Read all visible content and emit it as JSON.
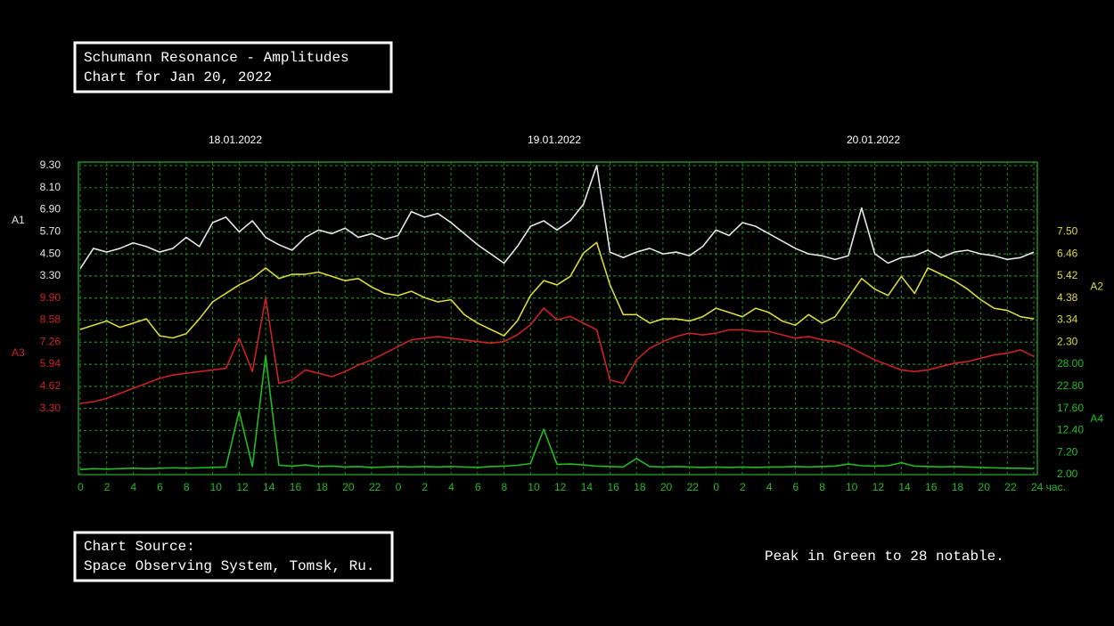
{
  "title_lines": [
    "Schumann Resonance - Amplitudes",
    "Chart for Jan 20, 2022"
  ],
  "source_lines": [
    "Chart Source:",
    "Space Observing System, Tomsk, Ru."
  ],
  "note": "Peak in Green to 28 notable.",
  "chart_data": {
    "type": "line",
    "date_labels": [
      "18.01.2022",
      "19.01.2022",
      "20.01.2022"
    ],
    "x": [
      0,
      1,
      2,
      3,
      4,
      5,
      6,
      7,
      8,
      9,
      10,
      11,
      12,
      13,
      14,
      15,
      16,
      17,
      18,
      19,
      20,
      21,
      22,
      23,
      24,
      25,
      26,
      27,
      28,
      29,
      30,
      31,
      32,
      33,
      34,
      35,
      36,
      37,
      38,
      39,
      40,
      41,
      42,
      43,
      44,
      45,
      46,
      47,
      48,
      49,
      50,
      51,
      52,
      53,
      54,
      55,
      56,
      57,
      58,
      59,
      60,
      61,
      62,
      63,
      64,
      65,
      66,
      67,
      68,
      69,
      70,
      71,
      72
    ],
    "xlim": [
      0,
      72
    ],
    "xticks": [
      0,
      2,
      4,
      6,
      8,
      10,
      12,
      14,
      16,
      18,
      20,
      22,
      {
        "value": 24,
        "label": "0"
      },
      {
        "value": 26,
        "label": "2"
      },
      {
        "value": 28,
        "label": "4"
      },
      {
        "value": 30,
        "label": "6"
      },
      {
        "value": 32,
        "label": "8"
      },
      {
        "value": 34,
        "label": "10"
      },
      {
        "value": 36,
        "label": "12"
      },
      {
        "value": 38,
        "label": "14"
      },
      {
        "value": 40,
        "label": "16"
      },
      {
        "value": 42,
        "label": "18"
      },
      {
        "value": 44,
        "label": "20"
      },
      {
        "value": 46,
        "label": "22"
      },
      {
        "value": 48,
        "label": "0"
      },
      {
        "value": 50,
        "label": "2"
      },
      {
        "value": 52,
        "label": "4"
      },
      {
        "value": 54,
        "label": "6"
      },
      {
        "value": 56,
        "label": "8"
      },
      {
        "value": 58,
        "label": "10"
      },
      {
        "value": 60,
        "label": "12"
      },
      {
        "value": 62,
        "label": "14"
      },
      {
        "value": 64,
        "label": "16"
      },
      {
        "value": 66,
        "label": "18"
      },
      {
        "value": 68,
        "label": "20"
      },
      {
        "value": 70,
        "label": "22"
      },
      {
        "value": 72,
        "label": "24 час."
      }
    ],
    "grid": true,
    "series": [
      {
        "name": "A1",
        "color": "#e6e6e6",
        "side": "left",
        "ylim": [
          -7.5,
          9.3
        ],
        "yticks": [
          {
            "value": 9.3,
            "label": "9.30"
          },
          {
            "value": 8.1,
            "label": "8.10"
          },
          {
            "value": 6.9,
            "label": "6.90"
          },
          {
            "value": 5.7,
            "label": "5.70"
          },
          {
            "value": 4.5,
            "label": "4.50"
          },
          {
            "value": 3.3,
            "label": "3.30"
          }
        ],
        "values": [
          3.7,
          4.8,
          4.6,
          4.8,
          5.1,
          4.9,
          4.6,
          4.8,
          5.4,
          4.9,
          6.2,
          6.5,
          5.7,
          6.3,
          5.4,
          5.0,
          4.7,
          5.4,
          5.8,
          5.6,
          5.9,
          5.4,
          5.6,
          5.3,
          5.5,
          6.8,
          6.5,
          6.7,
          6.2,
          5.6,
          5.0,
          4.5,
          4.0,
          4.9,
          6.0,
          6.3,
          5.8,
          6.3,
          7.2,
          9.3,
          4.6,
          4.3,
          4.6,
          4.8,
          4.5,
          4.6,
          4.4,
          4.9,
          5.8,
          5.5,
          6.2,
          6.0,
          5.6,
          5.2,
          4.8,
          4.5,
          4.4,
          4.2,
          4.4,
          7.0,
          4.5,
          4.0,
          4.3,
          4.4,
          4.7,
          4.3,
          4.6,
          4.7,
          4.5,
          4.4,
          4.2,
          4.3,
          4.6
        ]
      },
      {
        "name": "A3",
        "color": "#cc2222",
        "side": "left",
        "ylim": [
          -0.66,
          17.82
        ],
        "yticks": [
          {
            "value": 9.9,
            "label": "9.90"
          },
          {
            "value": 8.58,
            "label": "8.58"
          },
          {
            "value": 7.26,
            "label": "7.26"
          },
          {
            "value": 5.94,
            "label": "5.94"
          },
          {
            "value": 4.62,
            "label": "4.62"
          },
          {
            "value": 3.3,
            "label": "3.30"
          }
        ],
        "values": [
          3.6,
          3.7,
          3.9,
          4.2,
          4.5,
          4.8,
          5.1,
          5.3,
          5.4,
          5.5,
          5.6,
          5.7,
          7.5,
          5.5,
          9.9,
          4.8,
          5.0,
          5.6,
          5.4,
          5.2,
          5.5,
          5.9,
          6.2,
          6.6,
          7.0,
          7.4,
          7.5,
          7.6,
          7.5,
          7.4,
          7.3,
          7.2,
          7.3,
          7.7,
          8.3,
          9.3,
          8.6,
          8.8,
          8.4,
          8.0,
          5.0,
          4.8,
          6.2,
          6.9,
          7.3,
          7.6,
          7.8,
          7.7,
          7.8,
          8.0,
          8.0,
          7.9,
          7.9,
          7.7,
          7.5,
          7.6,
          7.4,
          7.3,
          7.0,
          6.6,
          6.2,
          5.9,
          5.6,
          5.5,
          5.6,
          5.8,
          6.0,
          6.1,
          6.3,
          6.5,
          6.6,
          6.8,
          6.4
        ]
      },
      {
        "name": "A2",
        "color": "#d9d93a",
        "side": "right",
        "ylim": [
          -3.94,
          10.62
        ],
        "yticks": [
          {
            "value": 7.5,
            "label": "7.50"
          },
          {
            "value": 6.46,
            "label": "6.46"
          },
          {
            "value": 5.42,
            "label": "5.42"
          },
          {
            "value": 4.38,
            "label": "4.38"
          },
          {
            "value": 3.34,
            "label": "3.34"
          },
          {
            "value": 2.3,
            "label": "2.30"
          }
        ],
        "values": [
          2.9,
          3.1,
          3.3,
          3.0,
          3.2,
          3.4,
          2.6,
          2.5,
          2.7,
          3.4,
          4.2,
          4.6,
          5.0,
          5.3,
          5.8,
          5.3,
          5.5,
          5.5,
          5.6,
          5.4,
          5.2,
          5.3,
          4.9,
          4.6,
          4.5,
          4.7,
          4.4,
          4.2,
          4.3,
          3.6,
          3.2,
          2.9,
          2.6,
          3.3,
          4.5,
          5.2,
          5.0,
          5.4,
          6.5,
          7.0,
          5.0,
          3.6,
          3.6,
          3.2,
          3.4,
          3.4,
          3.3,
          3.5,
          3.9,
          3.7,
          3.5,
          3.9,
          3.7,
          3.3,
          3.1,
          3.6,
          3.2,
          3.5,
          4.4,
          5.3,
          4.8,
          4.5,
          5.4,
          4.6,
          5.8,
          5.5,
          5.2,
          4.8,
          4.3,
          3.9,
          3.8,
          3.5,
          3.4
        ]
      },
      {
        "name": "A4",
        "color": "#22bb22",
        "side": "right",
        "ylim": [
          2,
          74.8
        ],
        "yticks": [
          {
            "value": 28,
            "label": "28.00"
          },
          {
            "value": 22.8,
            "label": "22.80"
          },
          {
            "value": 17.6,
            "label": "17.60"
          },
          {
            "value": 12.4,
            "label": "12.40"
          },
          {
            "value": 7.2,
            "label": "7.20"
          },
          {
            "value": 2,
            "label": "2.00"
          }
        ],
        "values": [
          3.2,
          3.4,
          3.3,
          3.4,
          3.5,
          3.4,
          3.5,
          3.6,
          3.5,
          3.6,
          3.7,
          3.8,
          16.9,
          3.9,
          30,
          4.2,
          4.0,
          4.3,
          3.9,
          4.0,
          3.8,
          3.9,
          3.7,
          3.8,
          3.9,
          3.8,
          3.9,
          3.8,
          3.9,
          3.8,
          3.7,
          3.9,
          4.0,
          4.2,
          4.6,
          12.7,
          4.4,
          4.5,
          4.3,
          4.0,
          3.9,
          3.8,
          5.8,
          3.9,
          3.8,
          3.9,
          3.8,
          3.7,
          3.8,
          3.7,
          3.8,
          3.7,
          3.8,
          3.8,
          3.9,
          3.8,
          3.9,
          4.0,
          4.5,
          4.1,
          4.0,
          4.1,
          4.8,
          4.0,
          3.9,
          3.8,
          3.9,
          3.8,
          3.7,
          3.6,
          3.5,
          3.5,
          3.4
        ]
      }
    ]
  }
}
